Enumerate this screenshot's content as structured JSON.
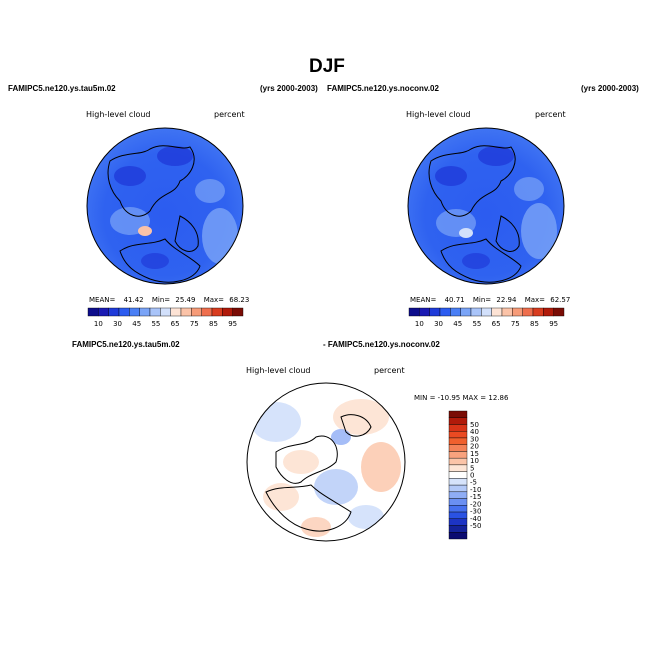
{
  "page": {
    "season": "DJF",
    "left_case": "FAMIPC5.ne120.ys.tau5m.02",
    "left_years": "(yrs 2000-2003)",
    "right_case": "FAMIPC5.ne120.ys.noconv.02",
    "right_years": "(yrs 2000-2003)",
    "diff_case_a": "FAMIPC5.ne120.ys.tau5m.02",
    "diff_case_b": "- FAMIPC5.ne120.ys.noconv.02"
  },
  "panels": {
    "left": {
      "variable": "High-level cloud",
      "units": "percent",
      "mean_label": "MEAN=",
      "mean": "41.42",
      "min_label": "Min=",
      "min": "25.49",
      "max_label": "Max=",
      "max": "68.23"
    },
    "right": {
      "variable": "High-level cloud",
      "units": "percent",
      "mean_label": "MEAN=",
      "mean": "40.71",
      "min_label": "Min=",
      "min": "22.94",
      "max_label": "Max=",
      "max": "62.57"
    },
    "diff": {
      "variable": "High-level cloud",
      "units": "percent",
      "minmax": "MIN = -10.95  MAX =  12.86"
    }
  },
  "colorbar_abs": {
    "colors": [
      "#0d0d8c",
      "#1a1ab3",
      "#1f3bd9",
      "#2c5cf0",
      "#4a7ff5",
      "#7aa4f7",
      "#a9c4f9",
      "#d2e0fb",
      "#fde3d5",
      "#fbc3a8",
      "#f69b78",
      "#ee6e4d",
      "#d83c1f",
      "#b01a0a",
      "#7a0c05"
    ],
    "ticks": [
      "10",
      "30",
      "45",
      "55",
      "65",
      "75",
      "85",
      "95"
    ]
  },
  "colorbar_diff": {
    "colors": [
      "#7a0c05",
      "#b01a0a",
      "#d83418",
      "#ea4a22",
      "#f0602e",
      "#f48258",
      "#f8a27e",
      "#fbc4a8",
      "#fde5d6",
      "#ffffff",
      "#d6e3fb",
      "#b3c9f8",
      "#8fadf5",
      "#6a8ff2",
      "#4670ee",
      "#2a52e3",
      "#1d34c4",
      "#14229a",
      "#0b0b70"
    ],
    "ticks": [
      "50",
      "40",
      "30",
      "20",
      "15",
      "10",
      "5",
      "0",
      "-5",
      "-10",
      "-15",
      "-20",
      "-30",
      "-40",
      "-50"
    ]
  }
}
